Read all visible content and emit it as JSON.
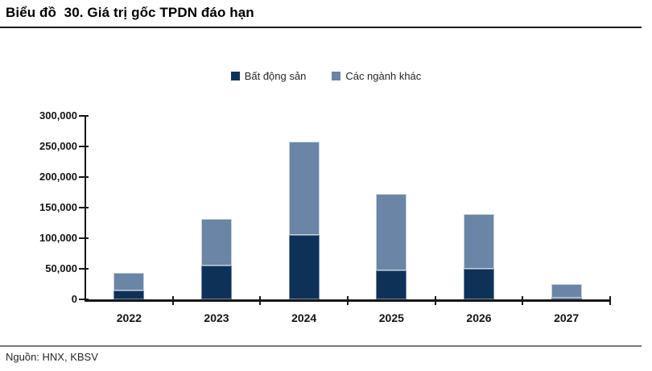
{
  "header": {
    "title": "Biểu đồ  30. Giá trị gốc TPDN đáo hạn"
  },
  "footer": {
    "source": "Nguồn: HNX, KBSV"
  },
  "chart_data": {
    "type": "bar",
    "stacked": true,
    "title": "Giá trị gốc TPDN đáo hạn",
    "categories": [
      "2022",
      "2023",
      "2024",
      "2025",
      "2026",
      "2027"
    ],
    "series": [
      {
        "name": "Bất động sản",
        "color": "#0e3158",
        "values": [
          15000,
          55000,
          105000,
          48000,
          50000,
          3000
        ]
      },
      {
        "name": "Các ngành khác",
        "color": "#6a85a5",
        "values": [
          28000,
          76000,
          153000,
          125000,
          89000,
          22000
        ]
      }
    ],
    "xlabel": "",
    "ylabel": "",
    "ylim": [
      0,
      300000
    ],
    "ytick_step": 50000,
    "ytick_labels": [
      "0",
      "50,000",
      "100,000",
      "150,000",
      "200,000",
      "250,000",
      "300,000"
    ],
    "legend_position": "top-center",
    "grid": false
  }
}
